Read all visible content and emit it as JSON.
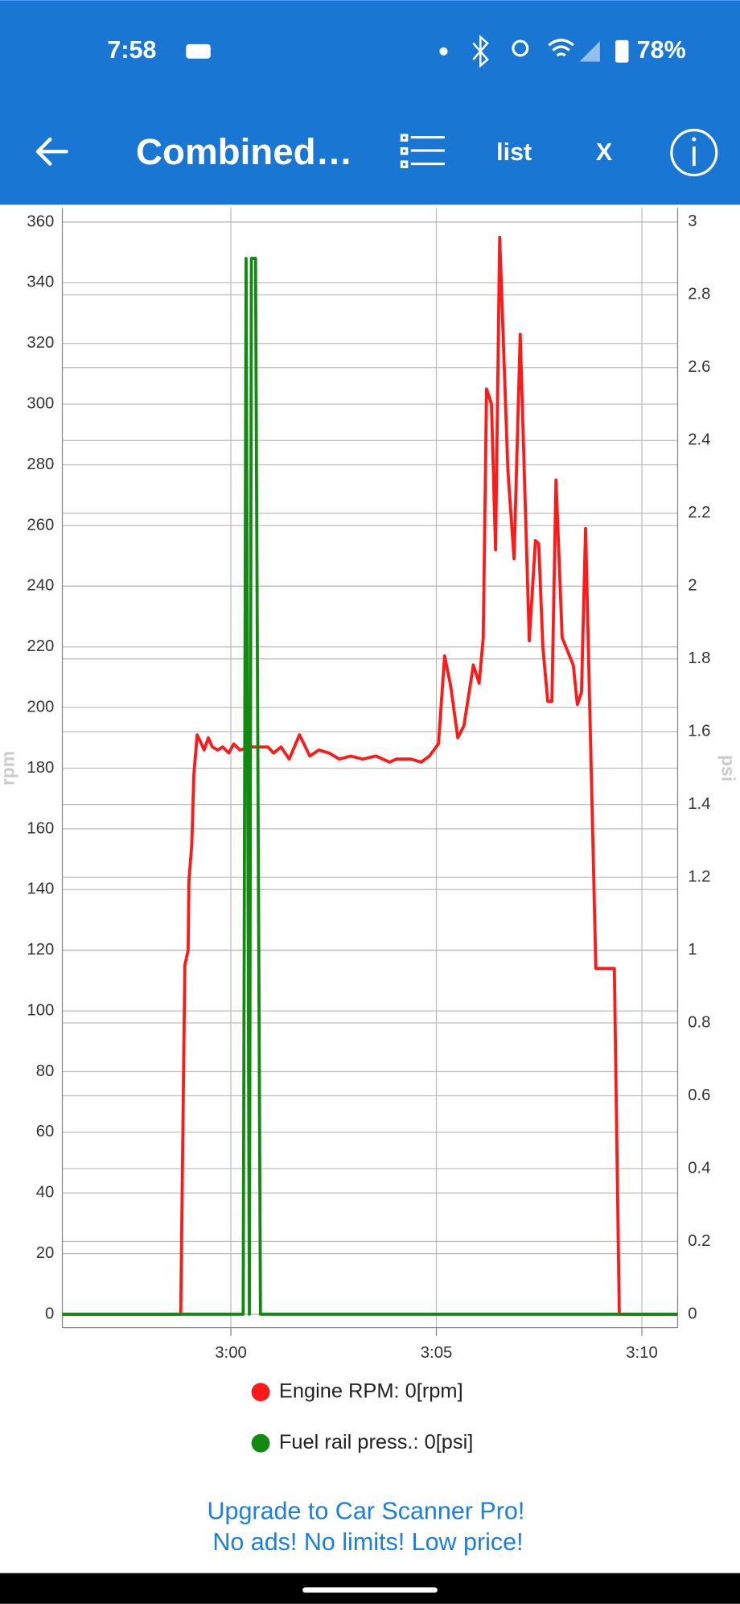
{
  "status_bar": {
    "time": "7:58",
    "battery": "78%"
  },
  "app_bar": {
    "title": "Combined…",
    "list": "list",
    "close": "X"
  },
  "chart_data": {
    "type": "line",
    "xlim": [
      175.9,
      190.87
    ],
    "xticks": [
      {
        "value": 180,
        "label": "3:00"
      },
      {
        "value": 185,
        "label": "3:05"
      },
      {
        "value": 190,
        "label": "3:10"
      }
    ],
    "ylim": [
      -4.4,
      364.7
    ],
    "yticks": [
      0,
      20,
      40,
      60,
      80,
      100,
      120,
      140,
      160,
      180,
      200,
      220,
      240,
      260,
      280,
      300,
      320,
      340,
      360
    ],
    "y2lim": [
      -0.037,
      3.039
    ],
    "y2ticks": [
      0,
      0.2,
      0.4,
      0.6,
      0.8,
      1,
      1.2,
      1.4,
      1.6,
      1.8,
      2,
      2.2,
      2.4,
      2.6,
      2.8,
      3
    ],
    "ylabel": "rpm",
    "y2label": "psi",
    "grid": true,
    "series": [
      {
        "name": "Engine RPM: 0[rpm]",
        "color": "#ff1a1a",
        "x": [
          175.9,
          178.78,
          178.88,
          178.96,
          178.98,
          179.05,
          179.1,
          179.18,
          179.25,
          179.35,
          179.45,
          179.55,
          179.68,
          179.8,
          179.95,
          180.07,
          180.22,
          180.47,
          180.72,
          180.9,
          181.04,
          181.22,
          181.42,
          181.67,
          181.92,
          182.14,
          182.39,
          182.64,
          182.91,
          183.21,
          183.53,
          183.86,
          184.03,
          184.38,
          184.63,
          184.83,
          185.05,
          185.2,
          185.35,
          185.52,
          185.67,
          185.9,
          186.04,
          186.14,
          186.22,
          186.34,
          186.44,
          186.54,
          186.74,
          186.89,
          187.04,
          187.26,
          187.41,
          187.49,
          187.59,
          187.71,
          187.81,
          187.91,
          188.06,
          188.33,
          188.43,
          188.53,
          188.63,
          188.88,
          189.33,
          189.45,
          190.87
        ],
        "values": [
          0,
          0,
          115,
          120,
          143,
          155,
          178,
          191,
          189,
          186,
          190,
          187,
          186,
          187,
          185,
          188,
          186,
          187,
          187,
          187,
          185,
          187,
          183,
          191,
          184,
          186,
          185,
          183,
          184,
          183,
          184,
          182,
          183,
          183,
          182,
          184,
          188,
          217,
          207,
          190,
          194,
          214,
          208,
          223,
          305,
          300,
          252,
          355,
          278,
          249,
          323,
          222,
          255,
          254,
          220,
          202,
          202,
          275,
          223,
          214,
          201,
          205,
          259,
          114,
          114,
          0,
          0
        ]
      },
      {
        "name": "Fuel rail press.: 0[psi]",
        "color": "#128a12",
        "axis": "y2",
        "x": [
          175.9,
          180.3,
          180.37,
          180.45,
          180.5,
          180.6,
          180.72,
          190.87
        ],
        "values": [
          0,
          0,
          2.9,
          0,
          2.9,
          2.9,
          0,
          0
        ]
      }
    ]
  },
  "footer": {
    "line1": "Upgrade to Car Scanner Pro!",
    "line2": "No ads! No limits! Low price!"
  }
}
